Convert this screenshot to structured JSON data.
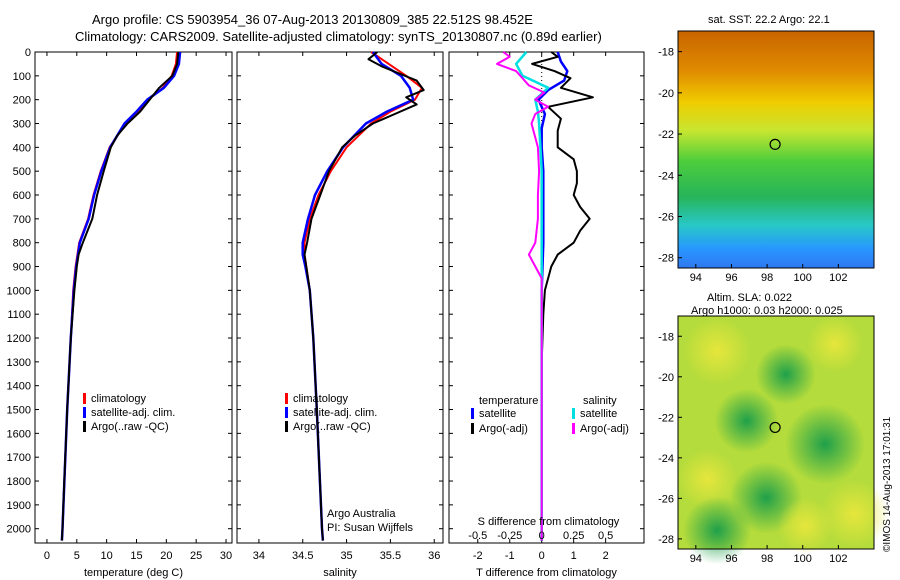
{
  "header": {
    "line1": "Argo profile: CS 5903954_36 07-Aug-2013 20130809_385 22.512S 98.452E",
    "line2": "Climatology: CARS2009. Satellite-adjusted climatology: synTS_20130807.nc (0.89d earlier)"
  },
  "maps": {
    "sst_title": "sat. SST: 22.2 Argo: 22.1",
    "sla_title": "Altim. SLA: 0.022",
    "sla_subtitle": "Argo h1000: 0.03 h2000: 0.025",
    "lon_ticks": [
      "94",
      "96",
      "98",
      "100",
      "102"
    ],
    "lat_ticks": [
      "-18",
      "-20",
      "-22",
      "-24",
      "-26",
      "-28"
    ],
    "stamp": "©IMOS 14-Aug-2013 17:01:31"
  },
  "colors": {
    "climatology": "#ff0000",
    "satellite": "#0000ff",
    "argo": "#000000",
    "salinity_sat": "#00e0e0",
    "salinity_argo": "#ff00ff"
  },
  "chart_data": [
    {
      "type": "line",
      "id": "temperature",
      "xlabel": "temperature (deg C)",
      "ylabel": "",
      "xlim": [
        -2,
        31
      ],
      "ylim": [
        2060,
        0
      ],
      "xticks": [
        "0",
        "5",
        "10",
        "15",
        "20",
        "25",
        "30"
      ],
      "yticks": [
        "0",
        "100",
        "200",
        "300",
        "400",
        "500",
        "600",
        "700",
        "800",
        "900",
        "1000",
        "1100",
        "1200",
        "1300",
        "1400",
        "1500",
        "1600",
        "1700",
        "1800",
        "1900",
        "2000"
      ],
      "legend": [
        "climatology",
        "satellite-adj. clim.",
        "Argo(..raw -QC)"
      ],
      "legend_pos": "bottom-center",
      "series": [
        {
          "name": "climatology",
          "depth": [
            0,
            50,
            100,
            150,
            200,
            250,
            300,
            400,
            500,
            600,
            700,
            800,
            900,
            1000,
            1200,
            1500,
            2000,
            2050
          ],
          "values": [
            21.8,
            21.6,
            20.9,
            19.4,
            17.0,
            15.2,
            13.2,
            10.5,
            9.0,
            7.8,
            6.9,
            5.4,
            4.8,
            4.4,
            4.0,
            3.4,
            2.6,
            2.5
          ]
        },
        {
          "name": "satellite",
          "depth": [
            0,
            50,
            100,
            150,
            200,
            250,
            300,
            400,
            500,
            600,
            700,
            800,
            900,
            1000,
            1200,
            1500,
            2000,
            2050
          ],
          "values": [
            22.3,
            22.1,
            21.3,
            19.6,
            16.8,
            15.0,
            13.0,
            10.6,
            9.1,
            7.9,
            7.0,
            5.5,
            4.9,
            4.5,
            4.0,
            3.4,
            2.6,
            2.5
          ]
        },
        {
          "name": "argo",
          "depth": [
            0,
            50,
            100,
            150,
            200,
            250,
            300,
            350,
            400,
            500,
            600,
            700,
            800,
            850,
            900,
            1000,
            1100,
            1200,
            1500,
            1800,
            2000,
            2050
          ],
          "values": [
            22.0,
            21.8,
            21.0,
            18.8,
            17.2,
            15.6,
            13.5,
            11.8,
            10.7,
            9.5,
            8.4,
            7.6,
            6.0,
            5.3,
            5.0,
            4.6,
            4.3,
            4.0,
            3.4,
            2.9,
            2.6,
            2.5
          ]
        }
      ]
    },
    {
      "type": "line",
      "id": "salinity",
      "xlabel": "salinity",
      "ylabel": "",
      "xlim": [
        33.75,
        36.1
      ],
      "ylim": [
        2060,
        0
      ],
      "xticks": [
        "34",
        "34.5",
        "35",
        "35.5",
        "36"
      ],
      "legend": [
        "climatology",
        "satellite-adj. clim.",
        "Argo(..raw -QC)"
      ],
      "legend_pos": "bottom-center",
      "annotations": [
        "Argo Australia",
        "PI: Susan Wijffels"
      ],
      "series": [
        {
          "name": "climatology",
          "depth": [
            0,
            50,
            100,
            150,
            200,
            250,
            300,
            400,
            500,
            600,
            700,
            800,
            850,
            900,
            1000,
            1200,
            1500,
            2000,
            2050
          ],
          "values": [
            35.28,
            35.48,
            35.68,
            35.86,
            35.78,
            35.5,
            35.28,
            35.0,
            34.82,
            34.68,
            34.58,
            34.52,
            34.52,
            34.54,
            34.58,
            34.62,
            34.66,
            34.72,
            34.73
          ]
        },
        {
          "name": "satellite",
          "depth": [
            0,
            50,
            100,
            150,
            200,
            250,
            300,
            400,
            500,
            600,
            700,
            800,
            850,
            900,
            1000,
            1200,
            1500,
            2000,
            2050
          ],
          "values": [
            35.3,
            35.4,
            35.62,
            35.72,
            35.76,
            35.46,
            35.22,
            34.96,
            34.78,
            34.64,
            34.56,
            34.5,
            34.5,
            34.53,
            34.58,
            34.62,
            34.66,
            34.72,
            34.73
          ]
        },
        {
          "name": "argo",
          "depth": [
            0,
            30,
            60,
            90,
            120,
            160,
            190,
            220,
            260,
            300,
            350,
            400,
            500,
            600,
            700,
            800,
            850,
            900,
            1000,
            1200,
            1500,
            2000,
            2050
          ],
          "values": [
            35.35,
            35.25,
            35.4,
            35.6,
            35.8,
            35.88,
            35.68,
            35.8,
            35.55,
            35.3,
            35.1,
            34.95,
            34.8,
            34.7,
            34.6,
            34.55,
            34.52,
            34.54,
            34.58,
            34.62,
            34.66,
            34.72,
            34.73
          ]
        }
      ]
    },
    {
      "type": "line",
      "id": "difference",
      "xlabel": "T difference from climatology",
      "xlabel2": "S difference from climatology",
      "xlim": [
        -2.9,
        3.2
      ],
      "ylim": [
        2060,
        0
      ],
      "xticks": [
        "-2",
        "-1",
        "0",
        "1",
        "2"
      ],
      "sticks": [
        "-0.5",
        "-0.25",
        "0",
        "0.25",
        "0.5"
      ],
      "legend_t_title": "temperature",
      "legend_s_title": "salinity",
      "legend": [
        "satellite",
        "Argo(-adj)",
        "satellite",
        "Argo(-adj)"
      ],
      "legend_pos": "bottom-center",
      "series": [
        {
          "name": "T satellite",
          "depth": [
            0,
            40,
            80,
            120,
            160,
            200,
            260,
            320,
            400,
            500,
            600,
            700,
            800,
            1000,
            1200,
            1500,
            2050
          ],
          "values": [
            0.5,
            0.6,
            0.8,
            0.7,
            0.2,
            -0.1,
            0.1,
            0.0,
            0.0,
            0.05,
            0.05,
            0.05,
            0.05,
            0.0,
            0.0,
            0.0,
            0.0
          ]
        },
        {
          "name": "T argo",
          "depth": [
            0,
            20,
            50,
            80,
            110,
            150,
            190,
            230,
            280,
            330,
            400,
            450,
            500,
            550,
            600,
            650,
            700,
            750,
            800,
            850,
            900,
            950,
            1000,
            1100,
            1300,
            1500,
            2050
          ],
          "values": [
            0.3,
            0.5,
            -0.3,
            0.4,
            0.9,
            0.6,
            1.6,
            0.2,
            0.6,
            0.5,
            0.5,
            1.0,
            1.1,
            1.1,
            1.0,
            1.2,
            1.5,
            1.2,
            1.0,
            0.5,
            0.3,
            0.2,
            0.1,
            0.05,
            0.0,
            0.0,
            0.0
          ]
        },
        {
          "name": "S satellite",
          "depth": [
            0,
            50,
            100,
            150,
            200,
            250,
            300,
            400,
            500,
            700,
            900,
            1200,
            1500,
            2050
          ],
          "values": [
            -0.12,
            -0.2,
            -0.15,
            0.05,
            -0.05,
            -0.03,
            -0.02,
            -0.01,
            0.0,
            0.0,
            0.0,
            0.0,
            0.0,
            0.0
          ]
        },
        {
          "name": "S argo",
          "depth": [
            0,
            20,
            50,
            80,
            110,
            140,
            170,
            200,
            230,
            260,
            300,
            400,
            500,
            600,
            700,
            800,
            850,
            900,
            950,
            1000,
            1100,
            1500,
            2050
          ],
          "values": [
            -0.3,
            -0.25,
            -0.35,
            -0.2,
            -0.15,
            -0.1,
            0.02,
            -0.05,
            0.05,
            -0.05,
            -0.08,
            -0.03,
            -0.02,
            -0.03,
            -0.03,
            -0.05,
            -0.1,
            -0.05,
            0.0,
            0.0,
            0.0,
            0.0,
            0.0
          ]
        }
      ]
    }
  ]
}
